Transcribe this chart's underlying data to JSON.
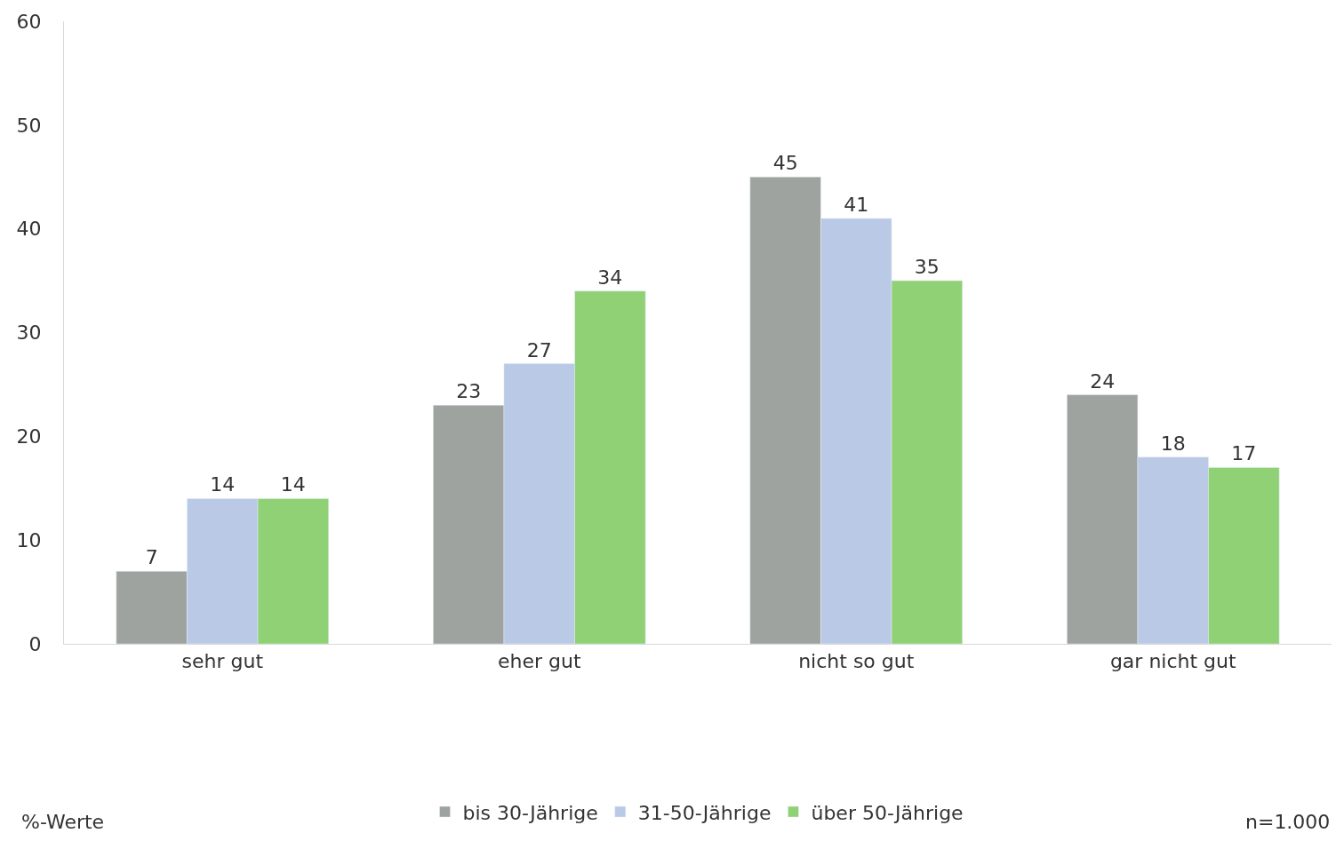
{
  "chart_data": {
    "type": "bar",
    "categories": [
      "sehr gut",
      "eher gut",
      "nicht so gut",
      "gar nicht gut"
    ],
    "series": [
      {
        "name": "bis 30-Jährige",
        "color": "#9ea39f",
        "values": [
          7,
          23,
          45,
          24
        ]
      },
      {
        "name": "31-50-Jährige",
        "color": "#b9c9e6",
        "values": [
          14,
          27,
          41,
          18
        ]
      },
      {
        "name": "über 50-Jährige",
        "color": "#8fd174",
        "values": [
          14,
          34,
          35,
          17
        ]
      }
    ],
    "ylim": [
      0,
      60
    ],
    "yticks": [
      0,
      10,
      20,
      30,
      40,
      50,
      60
    ],
    "legend": "bottom",
    "data_labels": true,
    "annotations": [
      "%-Werte",
      "n=1.000"
    ]
  }
}
